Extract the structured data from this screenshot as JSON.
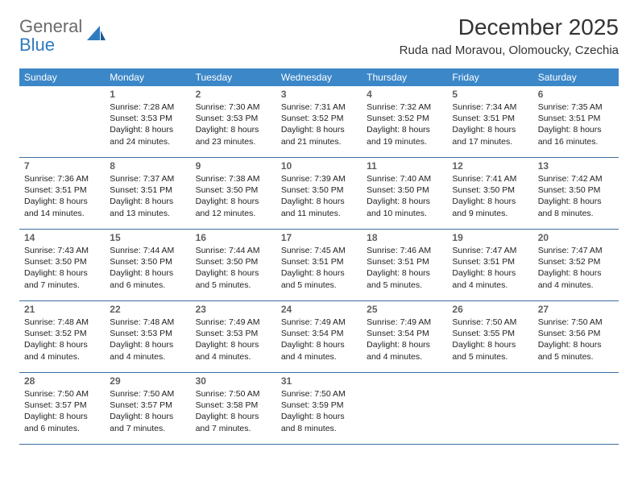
{
  "logo": {
    "text1": "General",
    "text2": "Blue"
  },
  "title": "December 2025",
  "location": "Ruda nad Moravou, Olomoucky, Czechia",
  "colors": {
    "header_bar": "#3b87c8",
    "header_text": "#ffffff",
    "row_border": "#3b6fa0",
    "daynum": "#5f5f5f",
    "body_text": "#222222",
    "logo_gray": "#6a6a6a",
    "logo_blue": "#2f7bbf",
    "background": "#ffffff"
  },
  "weekdays": [
    "Sunday",
    "Monday",
    "Tuesday",
    "Wednesday",
    "Thursday",
    "Friday",
    "Saturday"
  ],
  "first_weekday_index": 1,
  "days": [
    {
      "n": 1,
      "sunrise": "7:28 AM",
      "sunset": "3:53 PM",
      "daylight": "8 hours and 24 minutes."
    },
    {
      "n": 2,
      "sunrise": "7:30 AM",
      "sunset": "3:53 PM",
      "daylight": "8 hours and 23 minutes."
    },
    {
      "n": 3,
      "sunrise": "7:31 AM",
      "sunset": "3:52 PM",
      "daylight": "8 hours and 21 minutes."
    },
    {
      "n": 4,
      "sunrise": "7:32 AM",
      "sunset": "3:52 PM",
      "daylight": "8 hours and 19 minutes."
    },
    {
      "n": 5,
      "sunrise": "7:34 AM",
      "sunset": "3:51 PM",
      "daylight": "8 hours and 17 minutes."
    },
    {
      "n": 6,
      "sunrise": "7:35 AM",
      "sunset": "3:51 PM",
      "daylight": "8 hours and 16 minutes."
    },
    {
      "n": 7,
      "sunrise": "7:36 AM",
      "sunset": "3:51 PM",
      "daylight": "8 hours and 14 minutes."
    },
    {
      "n": 8,
      "sunrise": "7:37 AM",
      "sunset": "3:51 PM",
      "daylight": "8 hours and 13 minutes."
    },
    {
      "n": 9,
      "sunrise": "7:38 AM",
      "sunset": "3:50 PM",
      "daylight": "8 hours and 12 minutes."
    },
    {
      "n": 10,
      "sunrise": "7:39 AM",
      "sunset": "3:50 PM",
      "daylight": "8 hours and 11 minutes."
    },
    {
      "n": 11,
      "sunrise": "7:40 AM",
      "sunset": "3:50 PM",
      "daylight": "8 hours and 10 minutes."
    },
    {
      "n": 12,
      "sunrise": "7:41 AM",
      "sunset": "3:50 PM",
      "daylight": "8 hours and 9 minutes."
    },
    {
      "n": 13,
      "sunrise": "7:42 AM",
      "sunset": "3:50 PM",
      "daylight": "8 hours and 8 minutes."
    },
    {
      "n": 14,
      "sunrise": "7:43 AM",
      "sunset": "3:50 PM",
      "daylight": "8 hours and 7 minutes."
    },
    {
      "n": 15,
      "sunrise": "7:44 AM",
      "sunset": "3:50 PM",
      "daylight": "8 hours and 6 minutes."
    },
    {
      "n": 16,
      "sunrise": "7:44 AM",
      "sunset": "3:50 PM",
      "daylight": "8 hours and 5 minutes."
    },
    {
      "n": 17,
      "sunrise": "7:45 AM",
      "sunset": "3:51 PM",
      "daylight": "8 hours and 5 minutes."
    },
    {
      "n": 18,
      "sunrise": "7:46 AM",
      "sunset": "3:51 PM",
      "daylight": "8 hours and 5 minutes."
    },
    {
      "n": 19,
      "sunrise": "7:47 AM",
      "sunset": "3:51 PM",
      "daylight": "8 hours and 4 minutes."
    },
    {
      "n": 20,
      "sunrise": "7:47 AM",
      "sunset": "3:52 PM",
      "daylight": "8 hours and 4 minutes."
    },
    {
      "n": 21,
      "sunrise": "7:48 AM",
      "sunset": "3:52 PM",
      "daylight": "8 hours and 4 minutes."
    },
    {
      "n": 22,
      "sunrise": "7:48 AM",
      "sunset": "3:53 PM",
      "daylight": "8 hours and 4 minutes."
    },
    {
      "n": 23,
      "sunrise": "7:49 AM",
      "sunset": "3:53 PM",
      "daylight": "8 hours and 4 minutes."
    },
    {
      "n": 24,
      "sunrise": "7:49 AM",
      "sunset": "3:54 PM",
      "daylight": "8 hours and 4 minutes."
    },
    {
      "n": 25,
      "sunrise": "7:49 AM",
      "sunset": "3:54 PM",
      "daylight": "8 hours and 4 minutes."
    },
    {
      "n": 26,
      "sunrise": "7:50 AM",
      "sunset": "3:55 PM",
      "daylight": "8 hours and 5 minutes."
    },
    {
      "n": 27,
      "sunrise": "7:50 AM",
      "sunset": "3:56 PM",
      "daylight": "8 hours and 5 minutes."
    },
    {
      "n": 28,
      "sunrise": "7:50 AM",
      "sunset": "3:57 PM",
      "daylight": "8 hours and 6 minutes."
    },
    {
      "n": 29,
      "sunrise": "7:50 AM",
      "sunset": "3:57 PM",
      "daylight": "8 hours and 7 minutes."
    },
    {
      "n": 30,
      "sunrise": "7:50 AM",
      "sunset": "3:58 PM",
      "daylight": "8 hours and 7 minutes."
    },
    {
      "n": 31,
      "sunrise": "7:50 AM",
      "sunset": "3:59 PM",
      "daylight": "8 hours and 8 minutes."
    }
  ],
  "labels": {
    "sunrise": "Sunrise:",
    "sunset": "Sunset:",
    "daylight": "Daylight:"
  }
}
